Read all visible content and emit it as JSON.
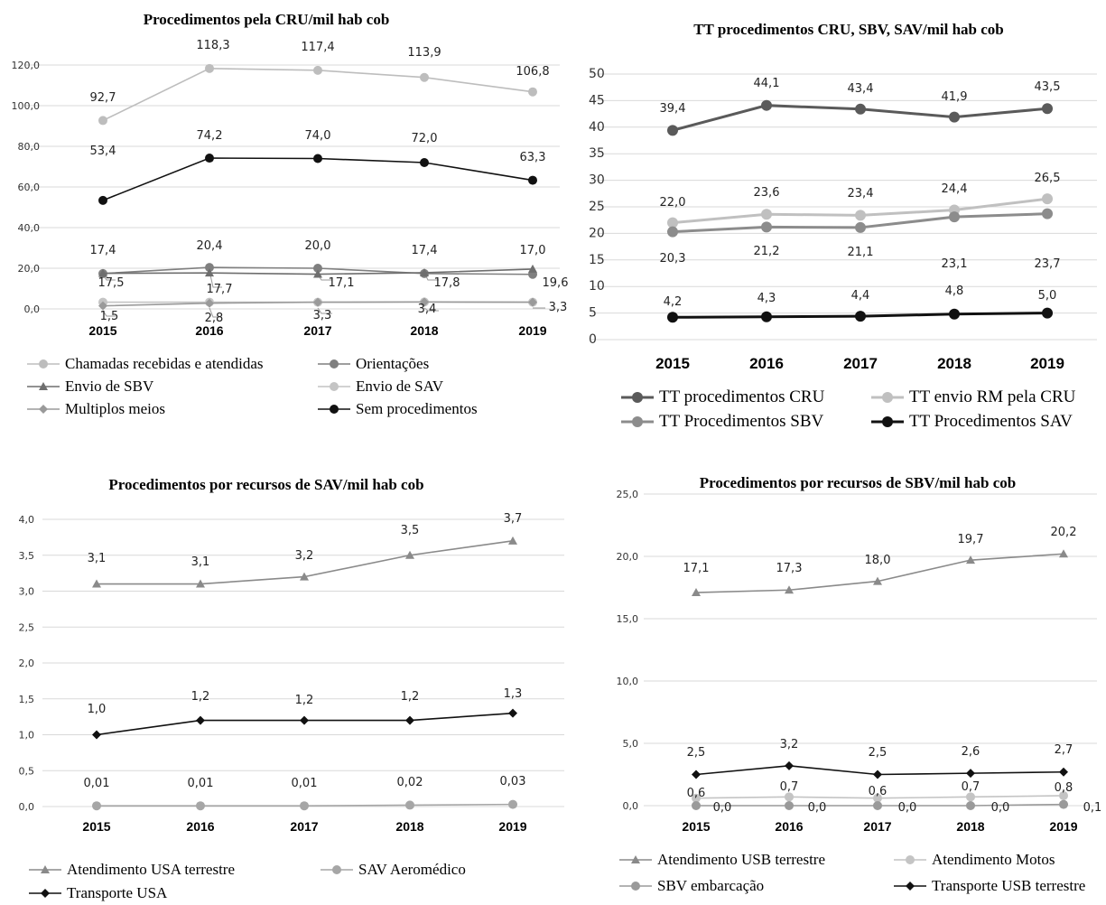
{
  "chart_data": [
    {
      "type": "line",
      "title": "Procedimentos pela CRU/mil hab cob",
      "categories": [
        "2015",
        "2016",
        "2017",
        "2018",
        "2019"
      ],
      "ylim": [
        0,
        120
      ],
      "yticks": [
        "0,0",
        "20,0",
        "40,0",
        "60,0",
        "80,0",
        "100,0",
        "120,0"
      ],
      "grid": true,
      "legend_position": "bottom",
      "series": [
        {
          "name": "Chamadas recebidas e atendidas",
          "values": [
            92.7,
            118.3,
            117.4,
            113.9,
            106.8
          ],
          "labels": [
            "92,7",
            "118,3",
            "117,4",
            "113,9",
            "106,8"
          ],
          "color": "#bdbdbd",
          "marker": "circle"
        },
        {
          "name": "Orientações",
          "values": [
            17.4,
            20.4,
            20.0,
            17.4,
            17.0
          ],
          "labels": [
            "17,4",
            "20,4",
            "20,0",
            "17,4",
            "17,0"
          ],
          "color": "#7f7f7f",
          "marker": "circle"
        },
        {
          "name": "Envio de SBV",
          "values": [
            17.5,
            17.7,
            17.1,
            17.8,
            19.6
          ],
          "labels": [
            "17,5",
            "17,7",
            "17,1",
            "17,8",
            "19,6"
          ],
          "color": "#6e6e6e",
          "marker": "triangle"
        },
        {
          "name": "Envio de SAV",
          "values": [
            3.3,
            3.3,
            3.3,
            3.4,
            3.3
          ],
          "labels": [],
          "color": "#c4c4c4",
          "marker": "circle"
        },
        {
          "name": "Multiplos meios",
          "values": [
            1.5,
            2.8,
            3.3,
            3.4,
            3.3
          ],
          "labels": [
            "1,5",
            "2,8",
            "3,3",
            "3,4",
            "3,3"
          ],
          "color": "#9a9a9a",
          "marker": "diamond"
        },
        {
          "name": "Sem procedimentos",
          "values": [
            53.4,
            74.2,
            74.0,
            72.0,
            63.3
          ],
          "labels": [
            "53,4",
            "74,2",
            "74,0",
            "72,0",
            "63,3"
          ],
          "color": "#111111",
          "marker": "circle"
        }
      ]
    },
    {
      "type": "line",
      "title": "TT procedimentos CRU, SBV, SAV/mil hab cob",
      "categories": [
        "2015",
        "2016",
        "2017",
        "2018",
        "2019"
      ],
      "ylim": [
        0,
        50
      ],
      "yticks": [
        "0",
        "5",
        "10",
        "15",
        "20",
        "25",
        "30",
        "35",
        "40",
        "45",
        "50"
      ],
      "grid": true,
      "legend_position": "bottom",
      "series": [
        {
          "name": "TT procedimentos CRU",
          "values": [
            39.4,
            44.1,
            43.4,
            41.9,
            43.5
          ],
          "labels": [
            "39,4",
            "44,1",
            "43,4",
            "41,9",
            "43,5"
          ],
          "color": "#5a5a5a",
          "marker": "circle"
        },
        {
          "name": "TT envio RM pela CRU",
          "values": [
            22.0,
            23.6,
            23.4,
            24.4,
            26.5
          ],
          "labels": [
            "22,0",
            "23,6",
            "23,4",
            "24,4",
            "26,5"
          ],
          "color": "#c0c0c0",
          "marker": "circle"
        },
        {
          "name": "TT Procedimentos SBV",
          "values": [
            20.3,
            21.2,
            21.1,
            23.1,
            23.7
          ],
          "labels": [
            "20,3",
            "21,2",
            "21,1",
            "23,1",
            "23,7"
          ],
          "color": "#8c8c8c",
          "marker": "circle"
        },
        {
          "name": "TT Procedimentos SAV",
          "values": [
            4.2,
            4.3,
            4.4,
            4.8,
            5.0
          ],
          "labels": [
            "4,2",
            "4,3",
            "4,4",
            "4,8",
            "5,0"
          ],
          "color": "#111111",
          "marker": "circle"
        }
      ]
    },
    {
      "type": "line",
      "title": "Procedimentos por recursos de SAV/mil hab cob",
      "categories": [
        "2015",
        "2016",
        "2017",
        "2018",
        "2019"
      ],
      "ylim": [
        0,
        4
      ],
      "yticks": [
        "0,0",
        "0,5",
        "1,0",
        "1,5",
        "2,0",
        "2,5",
        "3,0",
        "3,5",
        "4,0"
      ],
      "grid": true,
      "legend_position": "bottom",
      "series": [
        {
          "name": "Atendimento USA terrestre",
          "values": [
            3.1,
            3.1,
            3.2,
            3.5,
            3.7
          ],
          "labels": [
            "3,1",
            "3,1",
            "3,2",
            "3,5",
            "3,7"
          ],
          "color": "#8a8a8a",
          "marker": "triangle"
        },
        {
          "name": "SAV Aeromédico",
          "values": [
            0.01,
            0.01,
            0.01,
            0.02,
            0.03
          ],
          "labels": [
            "0,01",
            "0,01",
            "0,01",
            "0,02",
            "0,03"
          ],
          "color": "#a6a6a6",
          "marker": "circle"
        },
        {
          "name": "Transporte USA",
          "values": [
            1.0,
            1.2,
            1.2,
            1.2,
            1.3
          ],
          "labels": [
            "1,0",
            "1,2",
            "1,2",
            "1,2",
            "1,3"
          ],
          "color": "#111111",
          "marker": "diamond"
        }
      ]
    },
    {
      "type": "line",
      "title": "Procedimentos por recursos de SBV/mil hab cob",
      "categories": [
        "2015",
        "2016",
        "2017",
        "2018",
        "2019"
      ],
      "ylim": [
        0,
        25
      ],
      "yticks": [
        "0,0",
        "5,0",
        "10,0",
        "15,0",
        "20,0",
        "25,0"
      ],
      "grid": true,
      "legend_position": "bottom",
      "series": [
        {
          "name": "Atendimento USB terrestre",
          "values": [
            17.1,
            17.3,
            18.0,
            19.7,
            20.2
          ],
          "labels": [
            "17,1",
            "17,3",
            "18,0",
            "19,7",
            "20,2"
          ],
          "color": "#8a8a8a",
          "marker": "triangle"
        },
        {
          "name": "Atendimento Motos",
          "values": [
            0.6,
            0.7,
            0.6,
            0.7,
            0.8
          ],
          "labels": [
            "0,6",
            "0,7",
            "0,6",
            "0,7",
            "0,8"
          ],
          "color": "#c4c4c4",
          "marker": "circle"
        },
        {
          "name": "SBV embarcação",
          "values": [
            0.0,
            0.0,
            0.0,
            0.0,
            0.1
          ],
          "labels": [
            "0,0",
            "0,0",
            "0,0",
            "0,0",
            "0,1"
          ],
          "color": "#9a9a9a",
          "marker": "circle"
        },
        {
          "name": "Transporte USB terrestre",
          "values": [
            2.5,
            3.2,
            2.5,
            2.6,
            2.7
          ],
          "labels": [
            "2,5",
            "3,2",
            "2,5",
            "2,6",
            "2,7"
          ],
          "color": "#111111",
          "marker": "diamond"
        }
      ]
    }
  ]
}
